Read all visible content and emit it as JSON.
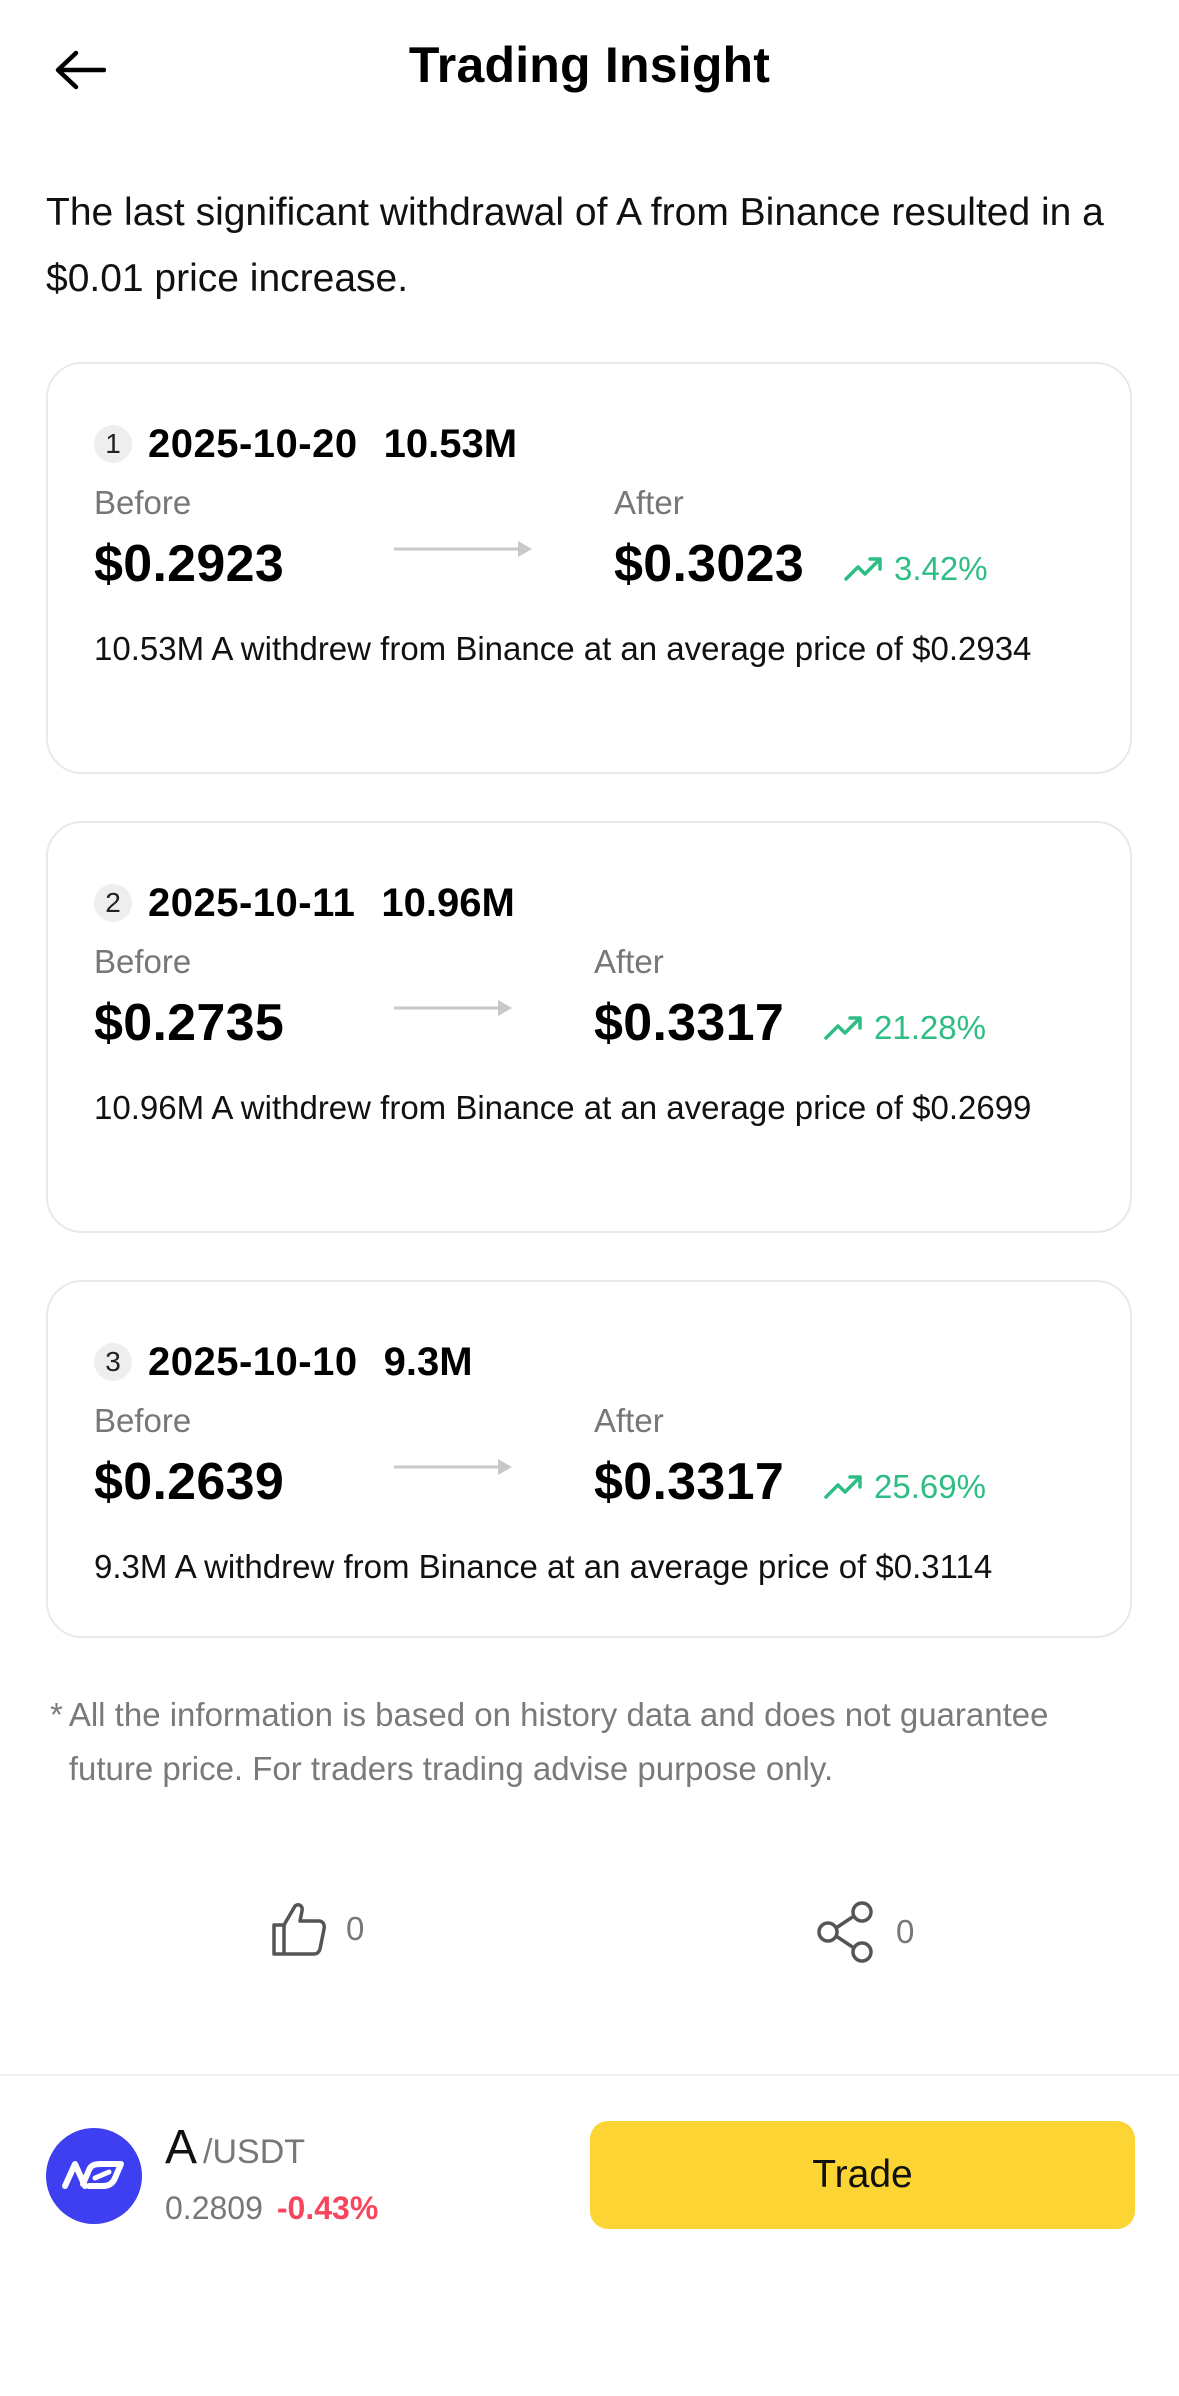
{
  "header": {
    "title": "Trading Insight",
    "back_icon": "arrow-left-icon"
  },
  "summary": "The last significant withdrawal of A from Binance resulted in a $0.01 price increase.",
  "labels": {
    "before": "Before",
    "after": "After"
  },
  "events": [
    {
      "index": "1",
      "date": "2025-10-20",
      "amount": "10.53M",
      "before_price": "$0.2923",
      "after_price": "$0.3023",
      "change": "3.42%",
      "description": "10.53M A withdrew from Binance at an average price of $0.2934"
    },
    {
      "index": "2",
      "date": "2025-10-11",
      "amount": "10.96M",
      "before_price": "$0.2735",
      "after_price": "$0.3317",
      "change": "21.28%",
      "description": "10.96M A withdrew from Binance at an average price of $0.2699"
    },
    {
      "index": "3",
      "date": "2025-10-10",
      "amount": "9.3M",
      "before_price": "$0.2639",
      "after_price": "$0.3317",
      "change": "25.69%",
      "description": "9.3M A withdrew from Binance at an average price of $0.3114"
    }
  ],
  "disclaimer": {
    "marker": "*",
    "text": "All the information is based on history data and does not guarantee future price. For traders trading advise purpose only."
  },
  "actions": {
    "like_count": "0",
    "share_count": "0",
    "like_icon": "thumbs-up-icon",
    "share_icon": "share-icon"
  },
  "bottom_bar": {
    "base": "A",
    "quote": "/USDT",
    "last_price": "0.2809",
    "change_pct": "-0.43%",
    "trade_label": "Trade",
    "logo_icon": "coin-logo-icon"
  },
  "colors": {
    "accent_yellow": "#fcd535",
    "up_green": "#2ebd85",
    "down_red": "#f6465d",
    "coin_blue": "#3d3ff0"
  }
}
